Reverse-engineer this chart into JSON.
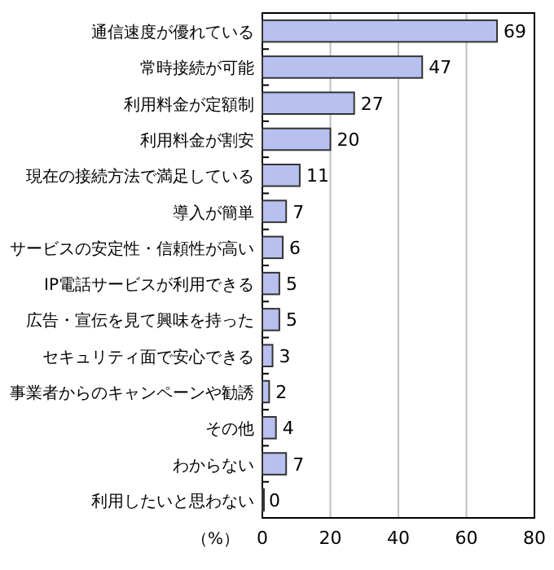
{
  "chart_data": {
    "type": "bar",
    "orientation": "horizontal",
    "xlabel": "（%）",
    "categories": [
      "通信速度が優れている",
      "常時接続が可能",
      "利用料金が定額制",
      "利用料金が割安",
      "現在の接続方法で満足している",
      "導入が簡単",
      "サービスの安定性・信頼性が高い",
      "IP電話サービスが利用できる",
      "広告・宣伝を見て興味を持った",
      "セキュリティ面で安心できる",
      "事業者からのキャンペーンや勧誘",
      "その他",
      "わからない",
      "利用したいと思わない"
    ],
    "values": [
      69,
      47,
      27,
      20,
      11,
      7,
      6,
      5,
      5,
      3,
      2,
      4,
      7,
      0
    ],
    "color": "#b8c0f0",
    "xlim": [
      0,
      80
    ],
    "xticks": [
      0,
      20,
      40,
      60,
      80
    ],
    "grid": "x",
    "data_labels": true
  }
}
